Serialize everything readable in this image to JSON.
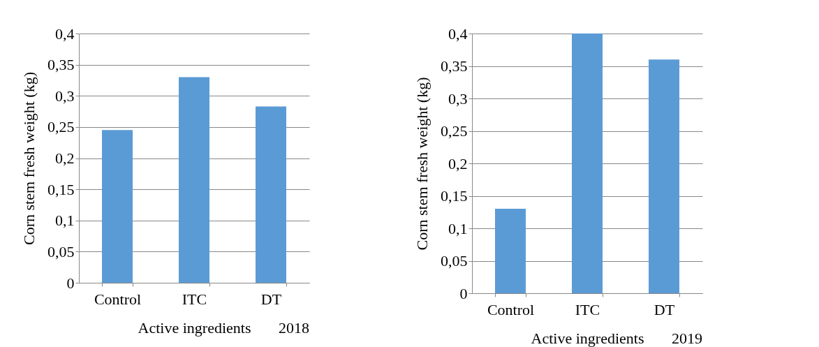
{
  "chart_data": [
    {
      "type": "bar",
      "categories": [
        "Control",
        "ITC",
        "DT"
      ],
      "values": [
        0.245,
        0.33,
        0.283
      ],
      "color": "#5b9bd5",
      "xlabel": "Active ingredients",
      "ylabel": "Corn stem fresh weight (kg)",
      "ylim": [
        0,
        0.4
      ],
      "yticks": [
        0,
        {
          "value": 0.05,
          "label": "0,05"
        },
        {
          "value": 0.1,
          "label": "0,1"
        },
        {
          "value": 0.15,
          "label": "0,15"
        },
        {
          "value": 0.2,
          "label": "0,2"
        },
        {
          "value": 0.25,
          "label": "0,25"
        },
        {
          "value": 0.3,
          "label": "0,3"
        },
        {
          "value": 0.35,
          "label": "0,35"
        },
        {
          "value": 0.4,
          "label": "0,4"
        }
      ],
      "grid": "y",
      "annotations": [
        "2018"
      ]
    },
    {
      "type": "bar",
      "categories": [
        "Control",
        "ITC",
        "DT"
      ],
      "values": [
        0.13,
        0.4,
        0.36
      ],
      "color": "#5b9bd5",
      "xlabel": "Active ingredients",
      "ylabel": "Corn stem fresh weight (kg)",
      "ylim": [
        0,
        0.4
      ],
      "yticks": [
        0,
        {
          "value": 0.05,
          "label": "0,05"
        },
        {
          "value": 0.1,
          "label": "0,1"
        },
        {
          "value": 0.15,
          "label": "0,15"
        },
        {
          "value": 0.2,
          "label": "0,2"
        },
        {
          "value": 0.25,
          "label": "0,25"
        },
        {
          "value": 0.3,
          "label": "0,3"
        },
        {
          "value": 0.35,
          "label": "0,35"
        },
        {
          "value": 0.4,
          "label": "0,4"
        }
      ],
      "grid": "y",
      "annotations": [
        "2019"
      ]
    }
  ]
}
